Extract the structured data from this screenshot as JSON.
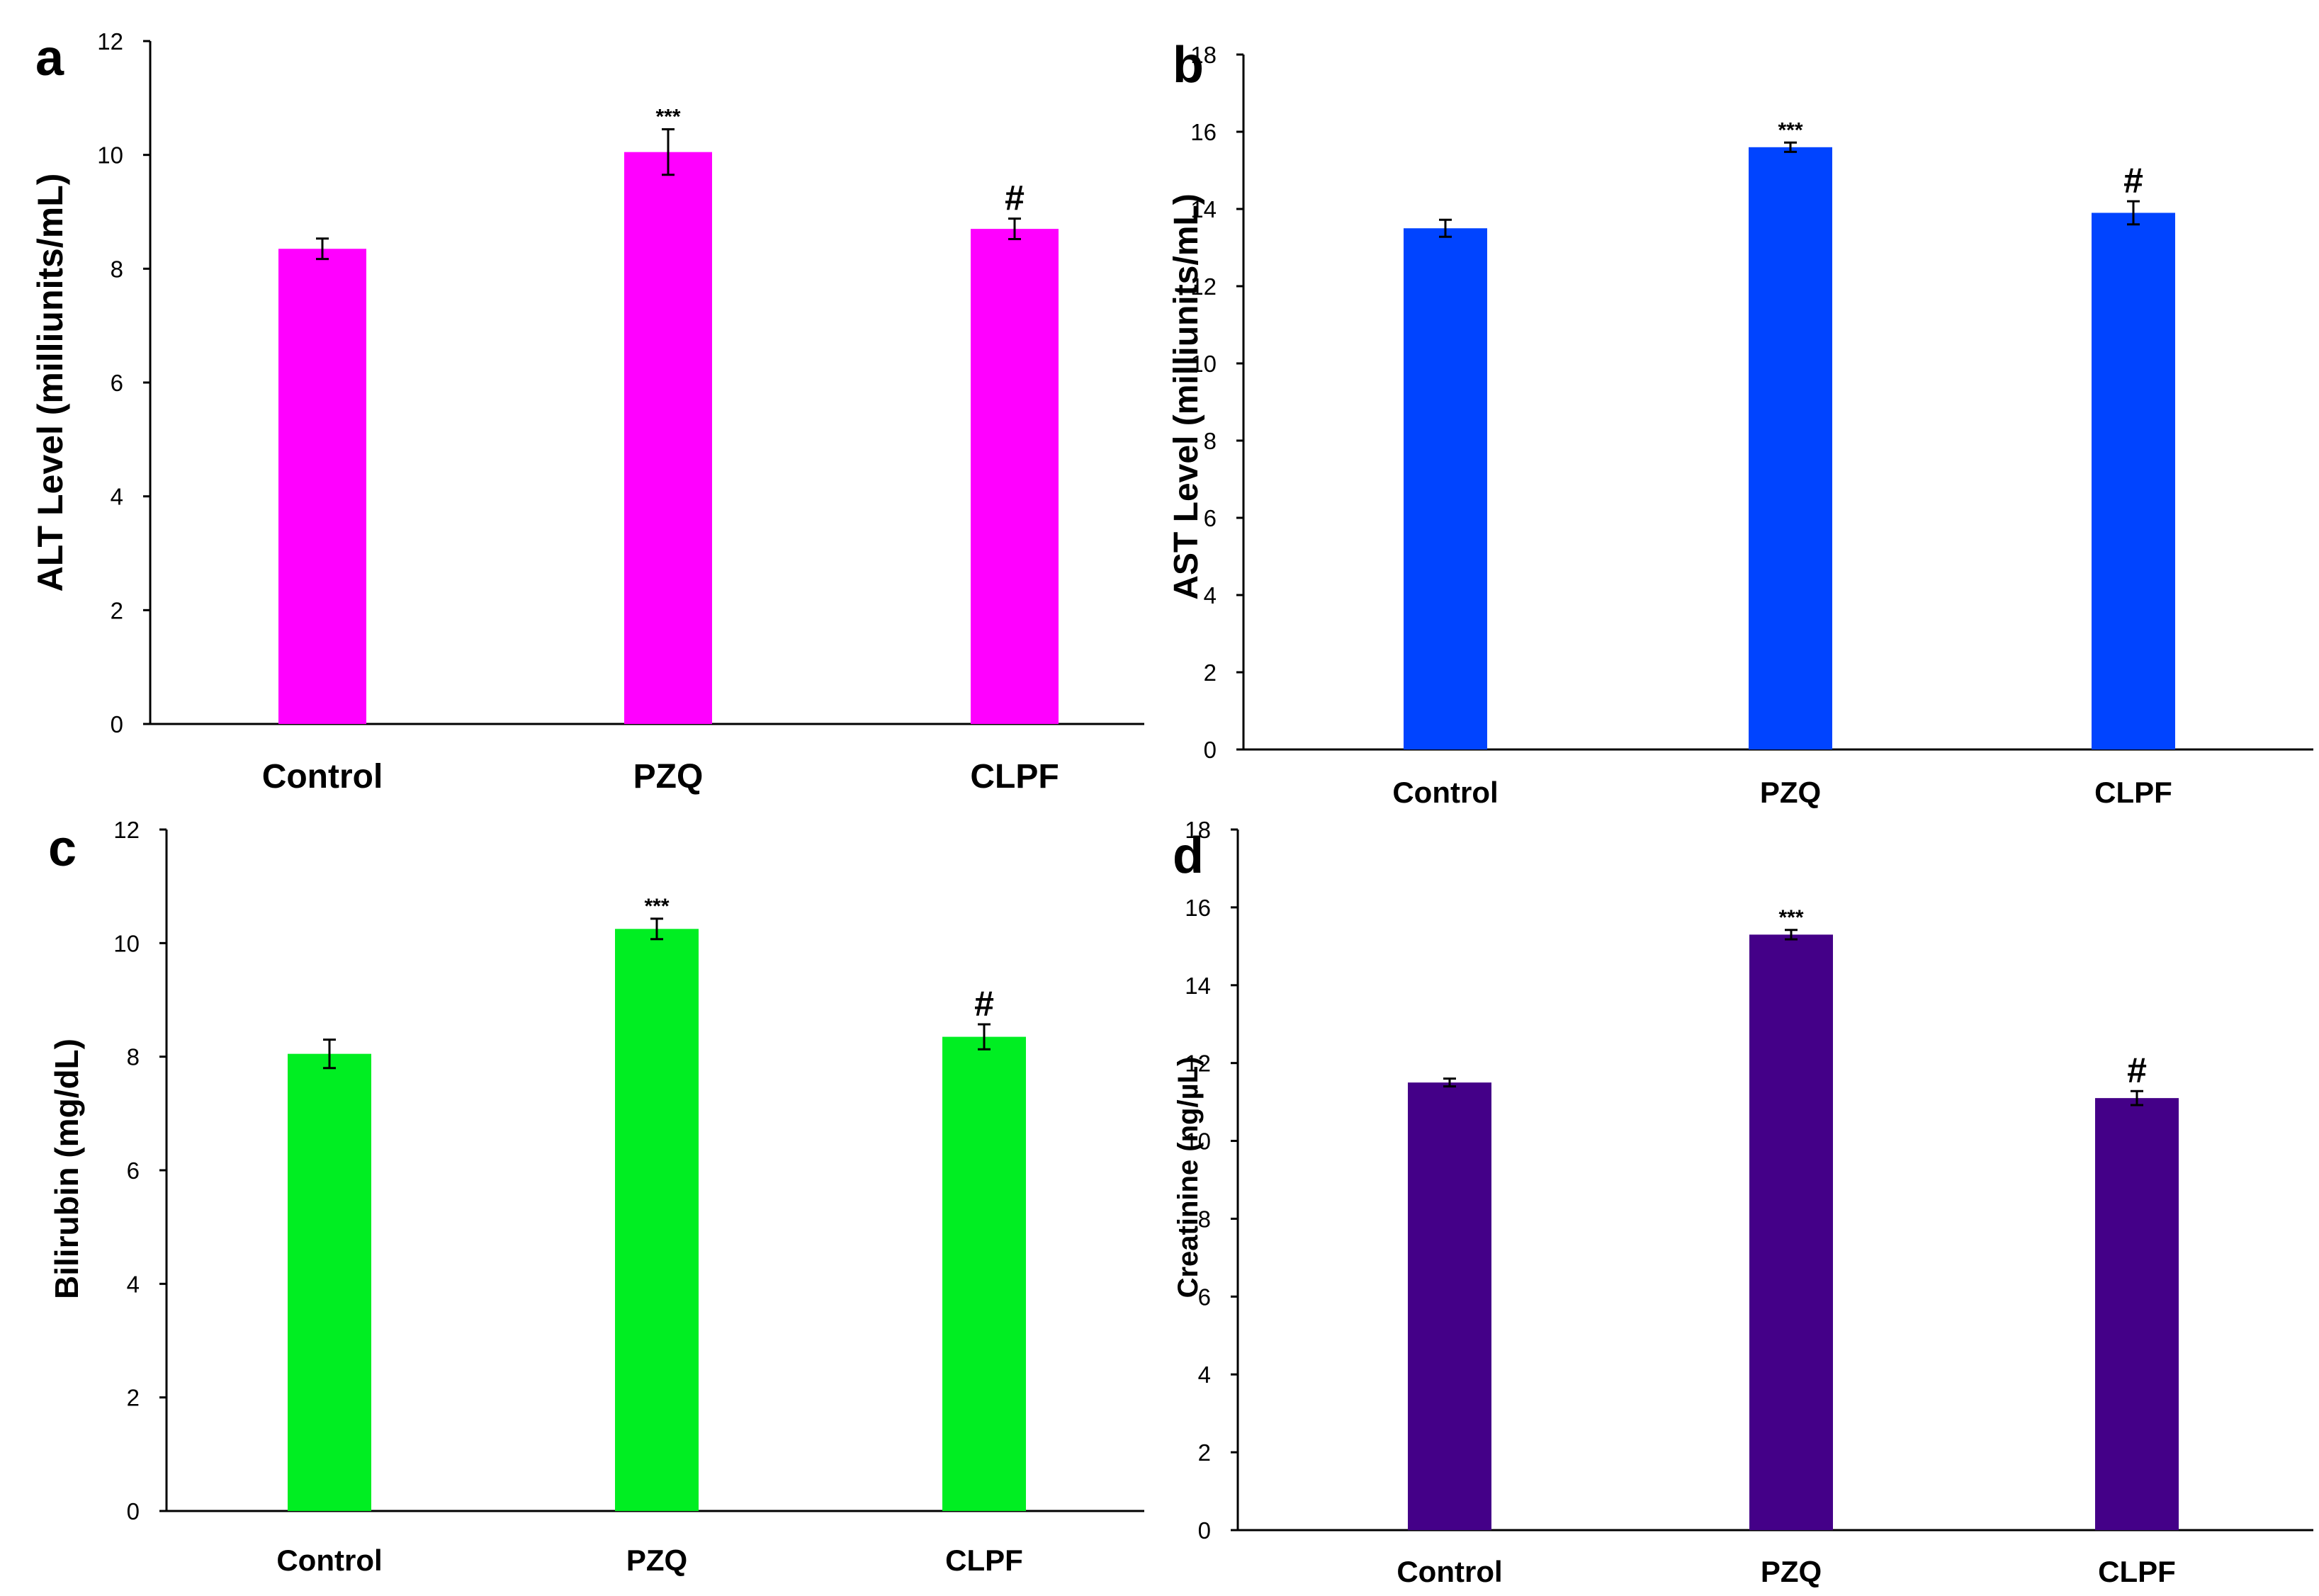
{
  "chart_data": [
    {
      "panel": "a",
      "type": "bar",
      "categories": [
        "Control",
        "PZQ",
        "CLPF"
      ],
      "values": [
        8.35,
        10.05,
        8.7
      ],
      "errors": [
        0.18,
        0.4,
        0.18
      ],
      "significance": [
        "",
        "***",
        "#"
      ],
      "ylabel": "ALT Level (milliunits/mL)",
      "ylim": [
        0,
        12
      ],
      "yticks": [
        0,
        2,
        4,
        6,
        8,
        10,
        12
      ],
      "color": "#ff00ff"
    },
    {
      "panel": "b",
      "type": "bar",
      "categories": [
        "Control",
        "PZQ",
        "CLPF"
      ],
      "values": [
        13.5,
        15.6,
        13.9
      ],
      "errors": [
        0.22,
        0.12,
        0.3
      ],
      "significance": [
        "",
        "***",
        "#"
      ],
      "ylabel": "AST Level (milliunits/mL)",
      "ylim": [
        0,
        18
      ],
      "yticks": [
        0,
        2,
        4,
        6,
        8,
        10,
        12,
        14,
        16,
        18
      ],
      "color": "#0044ff"
    },
    {
      "panel": "c",
      "type": "bar",
      "categories": [
        "Control",
        "PZQ",
        "CLPF"
      ],
      "values": [
        8.05,
        10.25,
        8.35
      ],
      "errors": [
        0.25,
        0.18,
        0.22
      ],
      "significance": [
        "",
        "***",
        "#"
      ],
      "ylabel": "Bilirubin (mg/dL)",
      "ylim": [
        0,
        12
      ],
      "yticks": [
        0,
        2,
        4,
        6,
        8,
        10,
        12
      ],
      "color": "#00ee22"
    },
    {
      "panel": "d",
      "type": "bar",
      "categories": [
        "Control",
        "PZQ",
        "CLPF"
      ],
      "values": [
        11.5,
        15.3,
        11.1
      ],
      "errors": [
        0.1,
        0.12,
        0.18
      ],
      "significance": [
        "",
        "***",
        "#"
      ],
      "ylabel": "Creatinine (ng/µL)",
      "ylim": [
        0,
        18
      ],
      "yticks": [
        0,
        2,
        4,
        6,
        8,
        10,
        12,
        14,
        16,
        18
      ],
      "color": "#440088"
    }
  ]
}
